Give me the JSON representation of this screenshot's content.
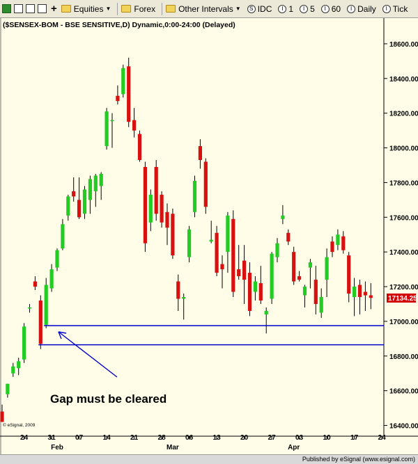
{
  "toolbar": {
    "equities": "Equities",
    "forex": "Forex",
    "other_intervals": "Other Intervals",
    "idc": "IDC",
    "i1": "1",
    "i5": "5",
    "i60": "60",
    "daily": "Daily",
    "tick": "Tick"
  },
  "footer": "Published by eSignal (www.esignal.com)",
  "chart_data": {
    "type": "candlestick",
    "title": "($SENSEX-BOM - BSE SENSITIVE,D) Dynamic,0:00-24:00 (Delayed)",
    "copyright": "© eSignal, 2009",
    "ylim": [
      16350,
      18700
    ],
    "yticks": [
      16400,
      16600,
      16800,
      17000,
      17200,
      17400,
      17600,
      17800,
      18000,
      18200,
      18400,
      18600
    ],
    "day_labels": [
      {
        "label": "24",
        "index": 4
      },
      {
        "label": "31",
        "index": 9
      },
      {
        "label": "07",
        "index": 14
      },
      {
        "label": "14",
        "index": 19
      },
      {
        "label": "21",
        "index": 24
      },
      {
        "label": "28",
        "index": 29
      },
      {
        "label": "06",
        "index": 34
      },
      {
        "label": "13",
        "index": 39
      },
      {
        "label": "20",
        "index": 44
      },
      {
        "label": "27",
        "index": 49
      },
      {
        "label": "03",
        "index": 54
      },
      {
        "label": "10",
        "index": 59
      },
      {
        "label": "17",
        "index": 64
      },
      {
        "label": "24",
        "index": 69
      }
    ],
    "month_labels": [
      {
        "label": "Feb",
        "index": 10
      },
      {
        "label": "Mar",
        "index": 31
      },
      {
        "label": "Apr",
        "index": 53
      }
    ],
    "last_price": "17134.25",
    "horizontal_lines": [
      16975,
      16865
    ],
    "annotation": "Gap must be cleared",
    "candles": [
      {
        "o": 16480,
        "h": 16520,
        "l": 16420,
        "c": 16420
      },
      {
        "o": 16580,
        "h": 16640,
        "l": 16560,
        "c": 16640
      },
      {
        "o": 16700,
        "h": 16760,
        "l": 16680,
        "c": 16740
      },
      {
        "o": 16730,
        "h": 16790,
        "l": 16690,
        "c": 16770
      },
      {
        "o": 16780,
        "h": 16990,
        "l": 16760,
        "c": 16970
      },
      {
        "o": 17080,
        "h": 17100,
        "l": 17050,
        "c": 17080
      },
      {
        "o": 17230,
        "h": 17260,
        "l": 17180,
        "c": 17200
      },
      {
        "o": 17120,
        "h": 17150,
        "l": 16840,
        "c": 16870
      },
      {
        "o": 16980,
        "h": 17250,
        "l": 16960,
        "c": 17210
      },
      {
        "o": 17190,
        "h": 17330,
        "l": 17170,
        "c": 17300
      },
      {
        "o": 17310,
        "h": 17420,
        "l": 17290,
        "c": 17410
      },
      {
        "o": 17420,
        "h": 17590,
        "l": 17410,
        "c": 17560
      },
      {
        "o": 17610,
        "h": 17730,
        "l": 17580,
        "c": 17720
      },
      {
        "o": 17750,
        "h": 17830,
        "l": 17690,
        "c": 17720
      },
      {
        "o": 17700,
        "h": 17830,
        "l": 17590,
        "c": 17600
      },
      {
        "o": 17620,
        "h": 17780,
        "l": 17590,
        "c": 17760
      },
      {
        "o": 17700,
        "h": 17840,
        "l": 17620,
        "c": 17820
      },
      {
        "o": 17750,
        "h": 17850,
        "l": 17660,
        "c": 17840
      },
      {
        "o": 17780,
        "h": 17860,
        "l": 17700,
        "c": 17850
      },
      {
        "o": 18010,
        "h": 18230,
        "l": 17990,
        "c": 18210
      },
      {
        "o": 18160,
        "h": 18200,
        "l": 18000,
        "c": 18160
      },
      {
        "o": 18300,
        "h": 18360,
        "l": 18250,
        "c": 18270
      },
      {
        "o": 18310,
        "h": 18480,
        "l": 18290,
        "c": 18460
      },
      {
        "o": 18470,
        "h": 18520,
        "l": 18120,
        "c": 18150
      },
      {
        "o": 18160,
        "h": 18230,
        "l": 18060,
        "c": 18100
      },
      {
        "o": 18080,
        "h": 18100,
        "l": 17920,
        "c": 17930
      },
      {
        "o": 17890,
        "h": 17920,
        "l": 17400,
        "c": 17450
      },
      {
        "o": 17570,
        "h": 17760,
        "l": 17520,
        "c": 17730
      },
      {
        "o": 17890,
        "h": 17930,
        "l": 17580,
        "c": 17620
      },
      {
        "o": 17730,
        "h": 17750,
        "l": 17540,
        "c": 17570
      },
      {
        "o": 17630,
        "h": 17680,
        "l": 17440,
        "c": 17540
      },
      {
        "o": 17620,
        "h": 17650,
        "l": 17360,
        "c": 17380
      },
      {
        "o": 17230,
        "h": 17270,
        "l": 17060,
        "c": 17130
      },
      {
        "o": 17130,
        "h": 17160,
        "l": 17010,
        "c": 17140
      },
      {
        "o": 17370,
        "h": 17550,
        "l": 17340,
        "c": 17530
      },
      {
        "o": 17630,
        "h": 17840,
        "l": 17600,
        "c": 17810
      },
      {
        "o": 18010,
        "h": 18050,
        "l": 17880,
        "c": 17930
      },
      {
        "o": 17920,
        "h": 17940,
        "l": 17620,
        "c": 17660
      },
      {
        "o": 17460,
        "h": 17580,
        "l": 17450,
        "c": 17470
      },
      {
        "o": 17510,
        "h": 17550,
        "l": 17260,
        "c": 17280
      },
      {
        "o": 17330,
        "h": 17380,
        "l": 17190,
        "c": 17300
      },
      {
        "o": 17400,
        "h": 17630,
        "l": 17280,
        "c": 17610
      },
      {
        "o": 17590,
        "h": 17640,
        "l": 17140,
        "c": 17170
      },
      {
        "o": 17300,
        "h": 17440,
        "l": 17240,
        "c": 17260
      },
      {
        "o": 17350,
        "h": 17440,
        "l": 17100,
        "c": 17240
      },
      {
        "o": 17280,
        "h": 17340,
        "l": 17030,
        "c": 17060
      },
      {
        "o": 17170,
        "h": 17260,
        "l": 17120,
        "c": 17230
      },
      {
        "o": 17220,
        "h": 17320,
        "l": 17100,
        "c": 17120
      },
      {
        "o": 17040,
        "h": 17080,
        "l": 16930,
        "c": 17060
      },
      {
        "o": 17130,
        "h": 17400,
        "l": 17100,
        "c": 17390
      },
      {
        "o": 17370,
        "h": 17480,
        "l": 17340,
        "c": 17450
      },
      {
        "o": 17590,
        "h": 17670,
        "l": 17560,
        "c": 17610
      },
      {
        "o": 17510,
        "h": 17530,
        "l": 17440,
        "c": 17460
      },
      {
        "o": 17400,
        "h": 17430,
        "l": 17210,
        "c": 17230
      },
      {
        "o": 17260,
        "h": 17290,
        "l": 17230,
        "c": 17240
      },
      {
        "o": 17150,
        "h": 17210,
        "l": 17080,
        "c": 17200
      },
      {
        "o": 17310,
        "h": 17360,
        "l": 17190,
        "c": 17340
      },
      {
        "o": 17240,
        "h": 17320,
        "l": 17040,
        "c": 17100
      },
      {
        "o": 17050,
        "h": 17190,
        "l": 17020,
        "c": 17140
      },
      {
        "o": 17240,
        "h": 17420,
        "l": 17140,
        "c": 17370
      },
      {
        "o": 17460,
        "h": 17490,
        "l": 17370,
        "c": 17400
      },
      {
        "o": 17440,
        "h": 17530,
        "l": 17410,
        "c": 17500
      },
      {
        "o": 17490,
        "h": 17520,
        "l": 17390,
        "c": 17410
      },
      {
        "o": 17380,
        "h": 17400,
        "l": 17110,
        "c": 17160
      },
      {
        "o": 17140,
        "h": 17250,
        "l": 17030,
        "c": 17200
      },
      {
        "o": 17210,
        "h": 17240,
        "l": 17040,
        "c": 17140
      },
      {
        "o": 17170,
        "h": 17230,
        "l": 17060,
        "c": 17150
      },
      {
        "o": 17150,
        "h": 17220,
        "l": 17070,
        "c": 17135
      }
    ]
  }
}
